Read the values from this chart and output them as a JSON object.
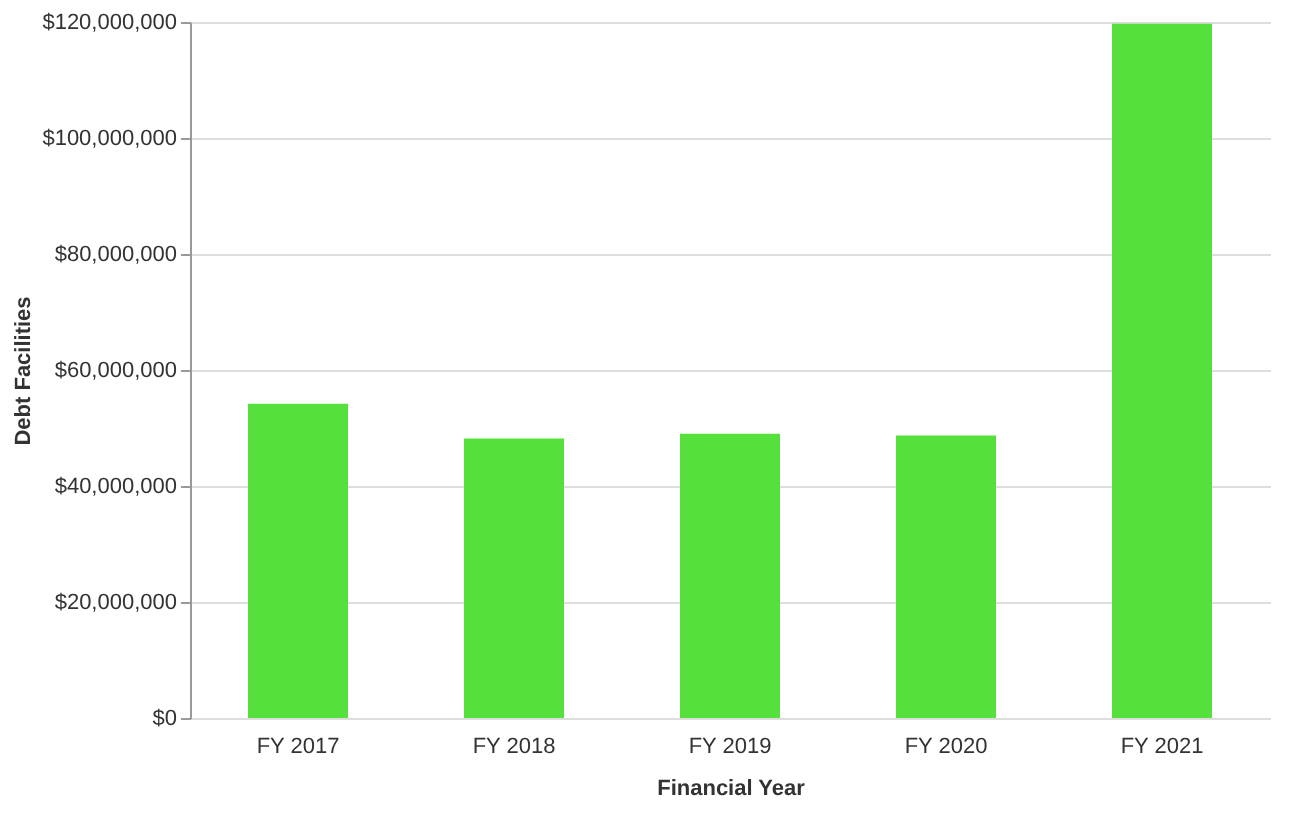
{
  "chart_data": {
    "type": "bar",
    "xlabel": "Financial Year",
    "ylabel": "Debt Facilities",
    "categories": [
      "FY 2017",
      "FY 2018",
      "FY 2019",
      "FY 2020",
      "FY 2021"
    ],
    "values": [
      54200000,
      48200000,
      49000000,
      48700000,
      119700000
    ],
    "color": "#55e03c",
    "ylim": [
      0,
      120000000
    ],
    "yticks": [
      {
        "value": 0,
        "label": "$0"
      },
      {
        "value": 20000000,
        "label": "$20,000,000"
      },
      {
        "value": 40000000,
        "label": "$40,000,000"
      },
      {
        "value": 60000000,
        "label": "$60,000,000"
      },
      {
        "value": 80000000,
        "label": "$80,000,000"
      },
      {
        "value": 100000000,
        "label": "$100,000,000"
      },
      {
        "value": 120000000,
        "label": "$120,000,000"
      }
    ],
    "grid": "y"
  }
}
